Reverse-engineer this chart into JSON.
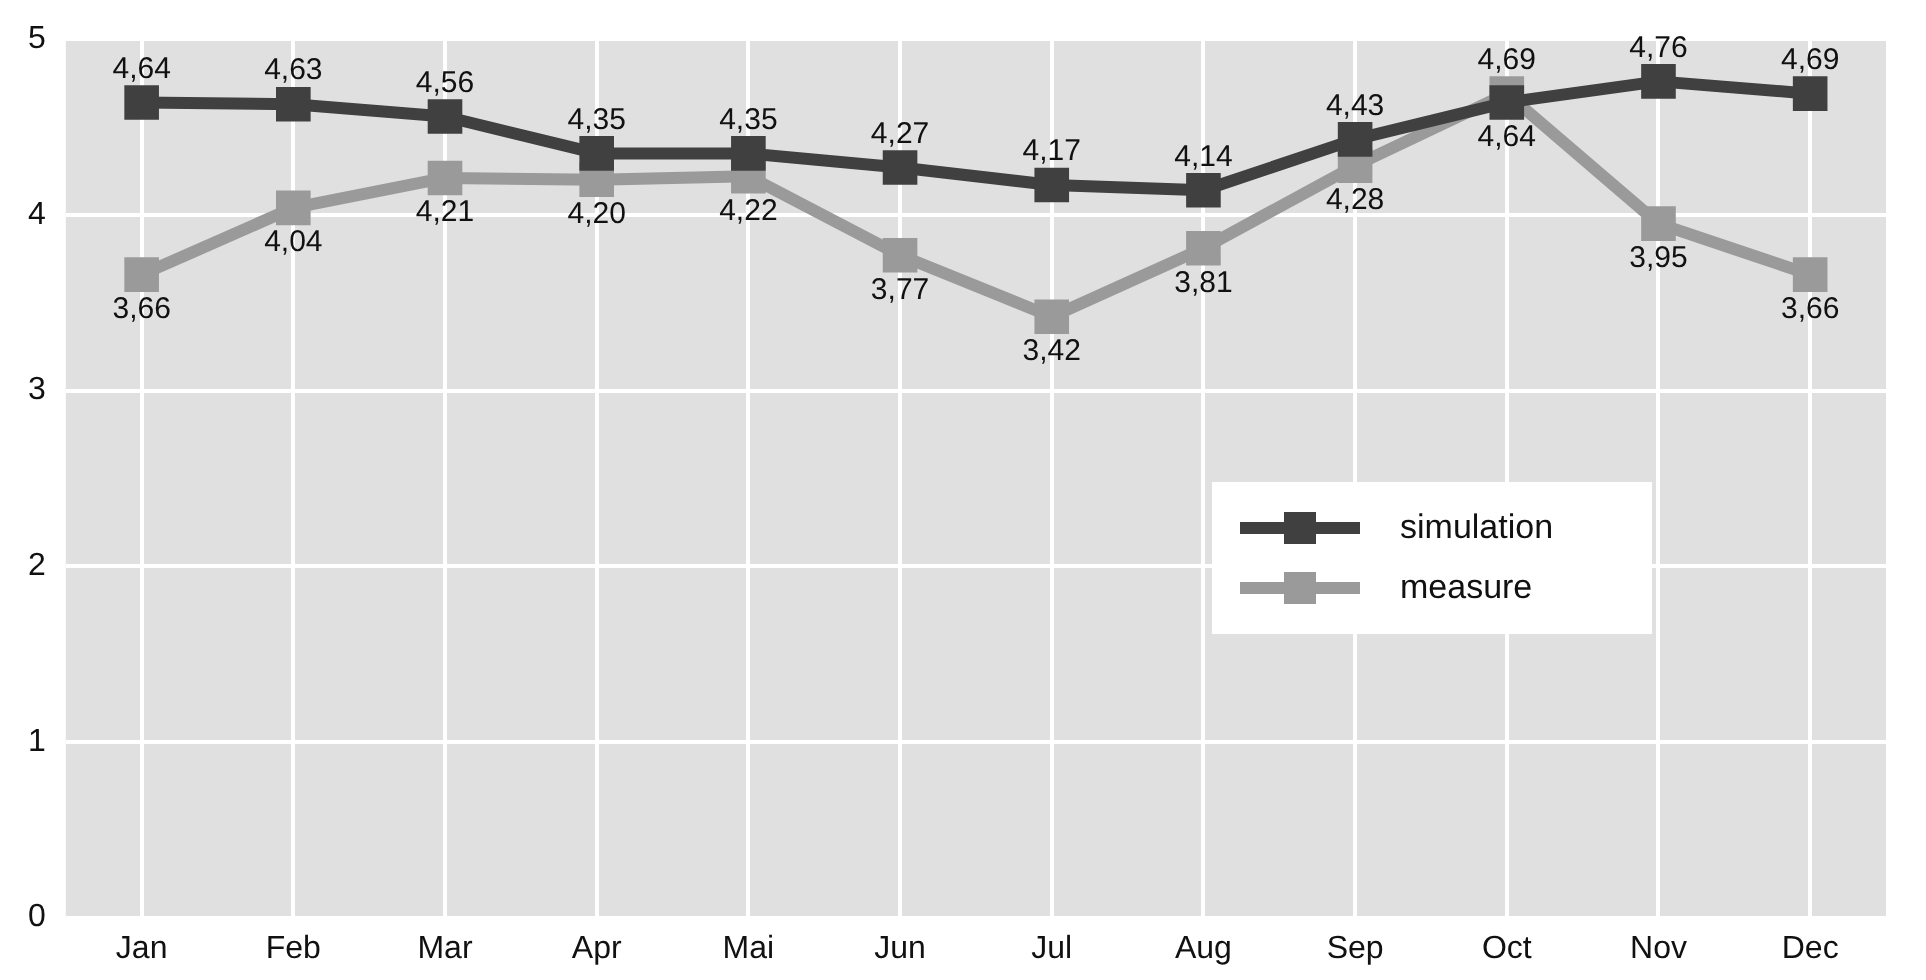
{
  "chart_data": {
    "type": "line",
    "categories": [
      "Jan",
      "Feb",
      "Mar",
      "Apr",
      "Mai",
      "Jun",
      "Jul",
      "Aug",
      "Sep",
      "Oct",
      "Nov",
      "Dec"
    ],
    "series": [
      {
        "name": "simulation",
        "color": "#404040",
        "values": [
          4.64,
          4.63,
          4.56,
          4.35,
          4.35,
          4.27,
          4.17,
          4.14,
          4.43,
          4.64,
          4.76,
          4.69
        ],
        "value_labels": [
          "4,64",
          "4,63",
          "4,56",
          "4,35",
          "4,35",
          "4,27",
          "4,17",
          "4,14",
          "4,43",
          "4,64",
          "4,76",
          "4,69"
        ]
      },
      {
        "name": "measure",
        "color": "#9a9a9a",
        "values": [
          3.66,
          4.04,
          4.21,
          4.2,
          4.22,
          3.77,
          3.42,
          3.81,
          4.28,
          4.69,
          3.95,
          3.66
        ],
        "value_labels": [
          "3,66",
          "4,04",
          "4,21",
          "4,20",
          "4,22",
          "3,77",
          "3,42",
          "3,81",
          "4,28",
          "4,69",
          "3,95",
          "3,66"
        ]
      }
    ],
    "ylim": [
      0,
      5
    ],
    "yticks": [
      0,
      1,
      2,
      3,
      4,
      5
    ],
    "grid": true,
    "legend": "right",
    "marker": "square",
    "line_style": "solid"
  }
}
